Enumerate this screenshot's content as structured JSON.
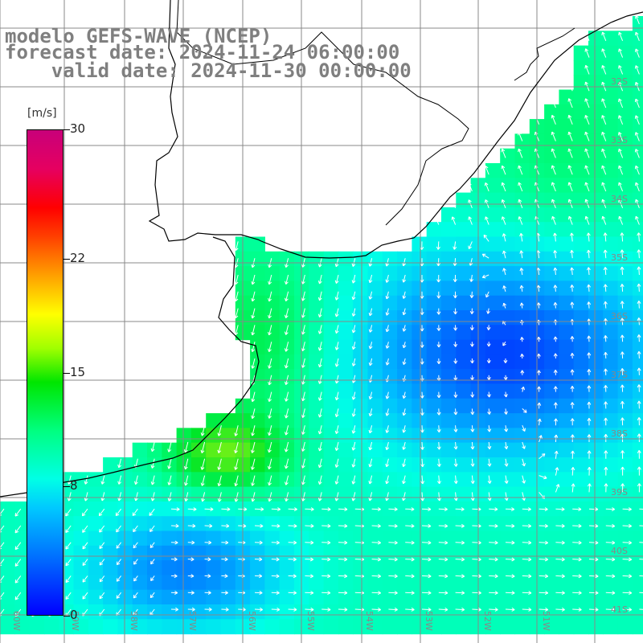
{
  "title": {
    "model": "modelo GEFS-WAVE (NCEP)",
    "forecast_date": "forecast date: 2024-11-24 06:00:00",
    "valid_date": "valid date: 2024-11-30 00:00:00"
  },
  "colorbar": {
    "unit": "[m/s]",
    "ticks": [
      "30",
      "22",
      "15",
      "8",
      "0"
    ],
    "tick_values": [
      30,
      22,
      15,
      8,
      0
    ],
    "max_value": 30,
    "colors": [
      "#0000ff",
      "#00c8ff",
      "#00ffe6",
      "#00e600",
      "#ffff00",
      "#ff0000",
      "#c8007a"
    ]
  },
  "latitude_labels": [
    "32S",
    "33S",
    "34S",
    "35S",
    "36S",
    "37S",
    "38S",
    "39S",
    "40S",
    "41S"
  ],
  "longitude_labels": [
    "60W",
    "59W",
    "58W",
    "57W",
    "56W",
    "55W",
    "54W",
    "53W",
    "52W",
    "51W"
  ],
  "colors": {
    "land": "#ffffff",
    "coastline": "#000000",
    "grid": "#888888",
    "arrows": "#ffffff",
    "labels": "#7f7f7f"
  }
}
